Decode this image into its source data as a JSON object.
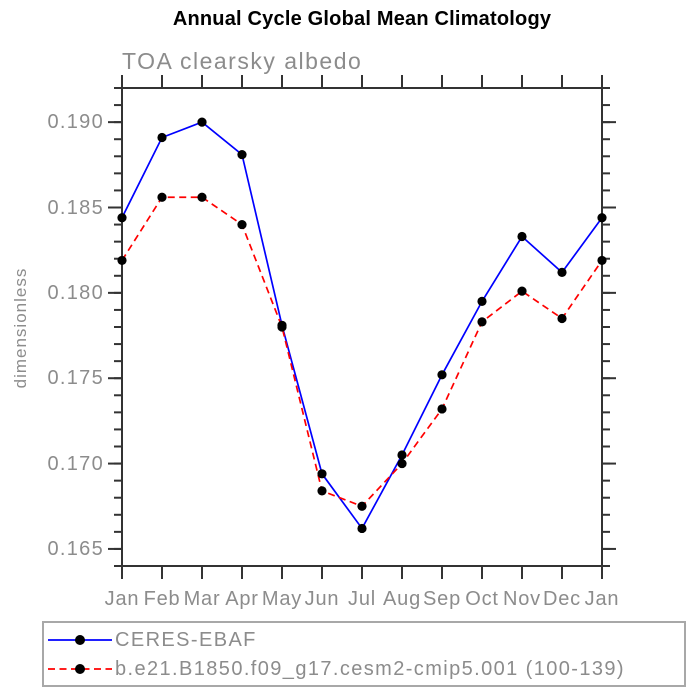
{
  "chart_data": {
    "type": "line",
    "title": "Annual Cycle Global Mean Climatology",
    "subtitle": "TOA clearsky albedo",
    "ylabel": "dimensionless",
    "xlabel": "",
    "x_tick_labels": [
      "Jan",
      "Feb",
      "Mar",
      "Apr",
      "May",
      "Jun",
      "Jul",
      "Aug",
      "Sep",
      "Oct",
      "Nov",
      "Dec",
      "Jan"
    ],
    "ylim": [
      0.164,
      0.192
    ],
    "yticks": [
      0.165,
      0.17,
      0.175,
      0.18,
      0.185,
      0.19
    ],
    "ytick_labels": [
      "0.165",
      "0.170",
      "0.175",
      "0.180",
      "0.185",
      "0.190"
    ],
    "y_minor_tick_step": 0.001,
    "grid": false,
    "legend_position": "bottom-left-outside-box",
    "series": [
      {
        "name": "CERES-EBAF",
        "color": "#0000ff",
        "line_style": "solid",
        "marker": "filled-circle",
        "marker_color": "#000000",
        "values": [
          0.1844,
          0.1891,
          0.19,
          0.1881,
          0.1781,
          0.1694,
          0.1662,
          0.1705,
          0.1752,
          0.1795,
          0.1833,
          0.1812,
          0.1844
        ]
      },
      {
        "name": "b.e21.B1850.f09_g17.cesm2-cmip5.001 (100-139)",
        "color": "#ff0000",
        "line_style": "dashed",
        "marker": "filled-circle",
        "marker_color": "#000000",
        "values": [
          0.1819,
          0.1856,
          0.1856,
          0.184,
          0.178,
          0.1684,
          0.1675,
          0.17,
          0.1732,
          0.1783,
          0.1801,
          0.1785,
          0.1819
        ]
      }
    ],
    "palette": {
      "axis": "#333333",
      "label_text": "#8c8c8c",
      "title_text": "#000000",
      "legend_border": "#a8a8a8",
      "marker": "#000000"
    }
  }
}
